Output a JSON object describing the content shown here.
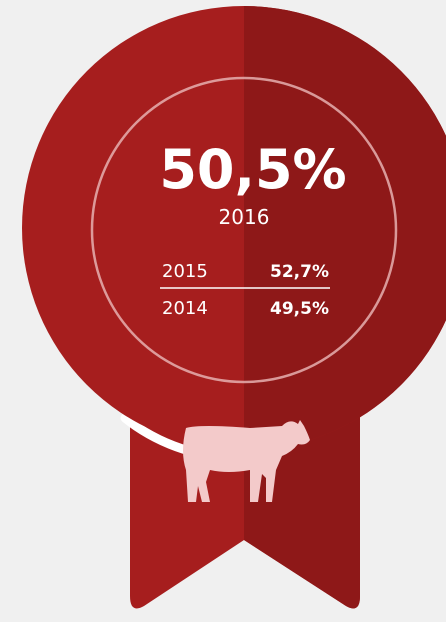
{
  "badge": {
    "value": "50,5%",
    "year": "2016",
    "rows": [
      {
        "year": "2015",
        "value": "52,7%"
      },
      {
        "year": "2014",
        "value": "49,5%"
      }
    ]
  }
}
